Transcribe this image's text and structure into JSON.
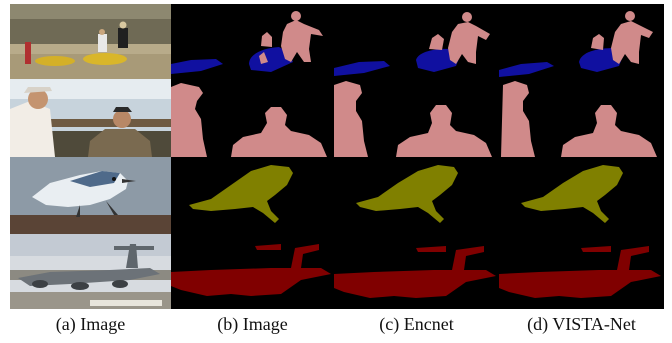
{
  "figure": {
    "captions": [
      {
        "label": "(a)",
        "text": "Image"
      },
      {
        "label": "(b)",
        "text": "Image"
      },
      {
        "label": "(c)",
        "text": "Encnet"
      },
      {
        "label": "(d)",
        "text": "VISTA-Net"
      }
    ],
    "rows": [
      {
        "subject": "people with canoes",
        "classes": [
          "person",
          "boat"
        ]
      },
      {
        "subject": "two people",
        "classes": [
          "person"
        ]
      },
      {
        "subject": "bird",
        "classes": [
          "bird"
        ]
      },
      {
        "subject": "aeroplane",
        "classes": [
          "aeroplane"
        ]
      }
    ],
    "palette": {
      "person": "#d08a8a",
      "boat": "#1010a0",
      "bird": "#808000",
      "aeroplane": "#800000",
      "background": "#000000"
    }
  }
}
